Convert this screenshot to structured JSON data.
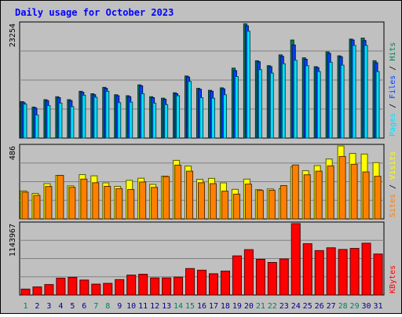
{
  "title": "Daily usage for October 2023",
  "colors": {
    "hits": "#00805c",
    "files": "#0040ff",
    "pages": "#00e0ff",
    "visits": "#ffff00",
    "sites": "#ff8000",
    "kbytes": "#ff0000",
    "weekend_label": "#00805c",
    "weekday_label": "#00008b",
    "title": "#0000ff"
  },
  "chart_data": [
    {
      "type": "bar",
      "panel": "top",
      "legend": [
        "Pages",
        "Files",
        "Hits"
      ],
      "ymax_label": "23254",
      "ylim": [
        0,
        23254
      ],
      "x": [
        "1",
        "2",
        "3",
        "4",
        "5",
        "6",
        "7",
        "8",
        "9",
        "10",
        "11",
        "12",
        "13",
        "14",
        "15",
        "16",
        "17",
        "18",
        "19",
        "20",
        "21",
        "22",
        "23",
        "24",
        "25",
        "26",
        "27",
        "28",
        "29",
        "30",
        "31"
      ],
      "series": [
        {
          "name": "Hits",
          "values": [
            7400,
            6300,
            7800,
            8400,
            7800,
            9500,
            9000,
            10300,
            8800,
            8600,
            10800,
            8400,
            8100,
            9200,
            12600,
            10100,
            9700,
            10200,
            14200,
            23200,
            15700,
            14700,
            16900,
            19900,
            16300,
            14500,
            17500,
            16700,
            20100,
            20300,
            15700
          ]
        },
        {
          "name": "Files",
          "values": [
            7200,
            6100,
            7600,
            8200,
            7600,
            9300,
            8800,
            10100,
            8600,
            8400,
            10600,
            8200,
            7900,
            9000,
            12400,
            9900,
            9500,
            10000,
            13700,
            22800,
            15500,
            14500,
            16600,
            18900,
            16000,
            14300,
            17200,
            16500,
            19900,
            19800,
            15300
          ]
        },
        {
          "name": "Pages",
          "values": [
            6900,
            4700,
            6600,
            7100,
            6400,
            8700,
            8300,
            9500,
            7200,
            7300,
            9000,
            7100,
            6800,
            8600,
            11500,
            8200,
            8100,
            8800,
            12500,
            21700,
            13900,
            13200,
            15100,
            15800,
            14700,
            13500,
            15400,
            14800,
            18800,
            18800,
            13500
          ]
        }
      ]
    },
    {
      "type": "bar",
      "panel": "middle",
      "legend": [
        "Sites",
        "Visits"
      ],
      "ymax_label": "486",
      "ylim": [
        0,
        486
      ],
      "x": [
        "1",
        "2",
        "3",
        "4",
        "5",
        "6",
        "7",
        "8",
        "9",
        "10",
        "11",
        "12",
        "13",
        "14",
        "15",
        "16",
        "17",
        "18",
        "19",
        "20",
        "21",
        "22",
        "23",
        "24",
        "25",
        "26",
        "27",
        "28",
        "29",
        "30",
        "31"
      ],
      "series": [
        {
          "name": "Visits",
          "values": [
            186,
            170,
            235,
            290,
            220,
            295,
            287,
            240,
            217,
            257,
            271,
            230,
            285,
            390,
            352,
            264,
            270,
            240,
            197,
            265,
            195,
            200,
            201,
            347,
            321,
            355,
            399,
            486,
            436,
            432,
            375
          ]
        },
        {
          "name": "Sites",
          "values": [
            178,
            157,
            216,
            290,
            210,
            265,
            241,
            217,
            202,
            196,
            246,
            210,
            282,
            358,
            318,
            241,
            235,
            185,
            165,
            232,
            190,
            191,
            222,
            359,
            294,
            318,
            353,
            416,
            364,
            313,
            284
          ]
        }
      ]
    },
    {
      "type": "bar",
      "panel": "bottom",
      "legend": [
        "KBytes"
      ],
      "ymax_label": "1143967",
      "ylim": [
        0,
        1143967
      ],
      "x": [
        "1",
        "2",
        "3",
        "4",
        "5",
        "6",
        "7",
        "8",
        "9",
        "10",
        "11",
        "12",
        "13",
        "14",
        "15",
        "16",
        "17",
        "18",
        "19",
        "20",
        "21",
        "22",
        "23",
        "24",
        "25",
        "26",
        "27",
        "28",
        "29",
        "30",
        "31"
      ],
      "series": [
        {
          "name": "KBytes",
          "values": [
            95000,
            130000,
            168000,
            270000,
            284000,
            240000,
            175000,
            187000,
            247000,
            320000,
            333000,
            274000,
            274000,
            287000,
            424000,
            398000,
            341000,
            384000,
            627000,
            727000,
            572000,
            522000,
            578000,
            1143967,
            822000,
            712000,
            757000,
            730000,
            747000,
            830000,
            657000
          ]
        }
      ]
    }
  ],
  "x_labels": [
    {
      "label": "1",
      "weekend": true
    },
    {
      "label": "2",
      "weekend": false
    },
    {
      "label": "3",
      "weekend": false
    },
    {
      "label": "4",
      "weekend": false
    },
    {
      "label": "5",
      "weekend": false
    },
    {
      "label": "6",
      "weekend": false
    },
    {
      "label": "7",
      "weekend": true
    },
    {
      "label": "8",
      "weekend": true
    },
    {
      "label": "9",
      "weekend": false
    },
    {
      "label": "10",
      "weekend": false
    },
    {
      "label": "11",
      "weekend": false
    },
    {
      "label": "12",
      "weekend": false
    },
    {
      "label": "13",
      "weekend": false
    },
    {
      "label": "14",
      "weekend": true
    },
    {
      "label": "15",
      "weekend": true
    },
    {
      "label": "16",
      "weekend": false
    },
    {
      "label": "17",
      "weekend": false
    },
    {
      "label": "18",
      "weekend": false
    },
    {
      "label": "19",
      "weekend": false
    },
    {
      "label": "20",
      "weekend": false
    },
    {
      "label": "21",
      "weekend": true
    },
    {
      "label": "22",
      "weekend": true
    },
    {
      "label": "23",
      "weekend": false
    },
    {
      "label": "24",
      "weekend": false
    },
    {
      "label": "25",
      "weekend": false
    },
    {
      "label": "26",
      "weekend": false
    },
    {
      "label": "27",
      "weekend": false
    },
    {
      "label": "28",
      "weekend": true
    },
    {
      "label": "29",
      "weekend": true
    },
    {
      "label": "30",
      "weekend": false
    },
    {
      "label": "31",
      "weekend": false
    }
  ]
}
